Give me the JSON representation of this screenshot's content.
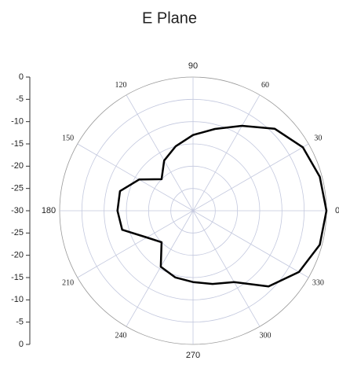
{
  "chart_data": {
    "type": "polar",
    "title": "E Plane",
    "theta": [
      0,
      15,
      30,
      45,
      60,
      75,
      90,
      105,
      120,
      135,
      150,
      165,
      180,
      195,
      210,
      225,
      240,
      255,
      270,
      285,
      300,
      315,
      330,
      345
    ],
    "values": [
      0,
      -0.5,
      -1.5,
      -4,
      -8,
      -11,
      -13,
      -15,
      -17,
      -20,
      -16,
      -13,
      -13,
      -13.5,
      -18,
      -20,
      -15.5,
      -14.5,
      -14,
      -13,
      -11.5,
      -6,
      -2.5,
      -0.5
    ],
    "color": "#000000",
    "rlim": [
      -30,
      0
    ],
    "rticks": [
      -30,
      -25,
      -20,
      -15,
      -10,
      -5,
      0
    ],
    "thetaticks": [
      0,
      30,
      60,
      90,
      120,
      150,
      180,
      210,
      240,
      270,
      300,
      330
    ],
    "grid": true
  }
}
